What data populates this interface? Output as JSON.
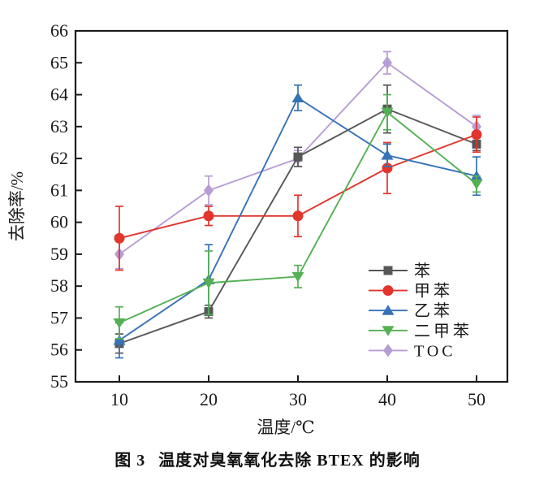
{
  "figure": {
    "caption_label": "图 3",
    "caption_title": "温度对臭氧氧化去除 BTEX 的影响"
  },
  "chart_data": {
    "type": "line",
    "title": "",
    "xlabel": "温度/℃",
    "ylabel": "去除率/%",
    "x": [
      10,
      20,
      30,
      40,
      50
    ],
    "x_ticks": [
      "10",
      "20",
      "30",
      "40",
      "50"
    ],
    "y_ticks": [
      "55",
      "56",
      "57",
      "58",
      "59",
      "60",
      "61",
      "62",
      "63",
      "64",
      "65",
      "66"
    ],
    "ylim": [
      55,
      66
    ],
    "grid": false,
    "legend_position": "inside-right-lower",
    "error_bars": true,
    "axis_color": "#1a1a1a",
    "series": [
      {
        "name": "苯",
        "marker": "square",
        "color": "#575757",
        "values": [
          56.2,
          57.2,
          62.05,
          63.55,
          62.45
        ],
        "errors": [
          0.3,
          0.2,
          0.3,
          0.75,
          0.2
        ]
      },
      {
        "name": "甲苯",
        "marker": "circle",
        "color": "#e2352c",
        "values": [
          59.5,
          60.2,
          60.2,
          61.7,
          62.75
        ],
        "errors": [
          1.0,
          0.3,
          0.65,
          0.8,
          0.55
        ]
      },
      {
        "name": "乙苯",
        "marker": "triangle-up",
        "color": "#3673b8",
        "values": [
          56.3,
          58.2,
          63.9,
          62.1,
          61.45
        ],
        "errors": [
          0.55,
          1.1,
          0.4,
          0.35,
          0.6
        ]
      },
      {
        "name": "二甲苯",
        "marker": "triangle-down",
        "color": "#55b054",
        "values": [
          56.85,
          58.1,
          58.3,
          63.45,
          61.2
        ],
        "errors": [
          0.5,
          1.0,
          0.35,
          0.55,
          0.25
        ]
      },
      {
        "name": "TOC",
        "marker": "diamond",
        "color": "#b79dd5",
        "values": [
          59.0,
          61.0,
          62.0,
          65.0,
          63.0
        ],
        "errors": [
          0.45,
          0.45,
          0.25,
          0.35,
          0.35
        ]
      }
    ],
    "draw_order": [
      4,
      0,
      1,
      2,
      3
    ]
  }
}
